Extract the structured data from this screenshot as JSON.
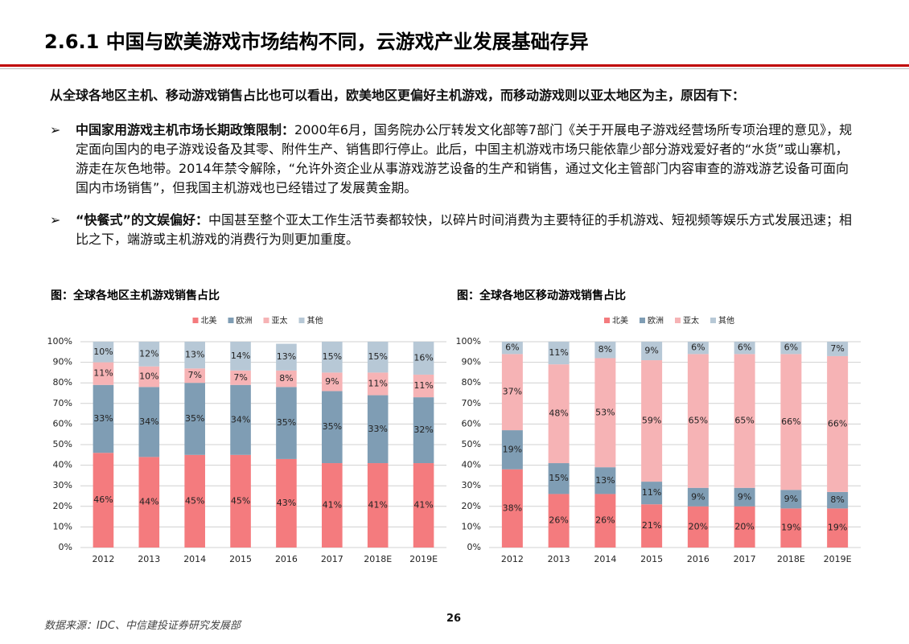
{
  "header": {
    "title": "2.6.1 中国与欧美游戏市场结构不同，云游戏产业发展基础存异"
  },
  "intro": "从全球各地区主机、移动游戏销售占比也可以看出，欧美地区更偏好主机游戏，而移动游戏则以亚太地区为主，原因有下：",
  "bullets": [
    {
      "lead": "中国家用游戏主机市场长期政策限制：",
      "text": "2000年6月，国务院办公厅转发文化部等7部门《关于开展电子游戏经营场所专项治理的意见》，规定面向国内的电子游戏设备及其零、附件生产、销售即行停止。此后，中国主机游戏市场只能依靠少部分游戏爱好者的“水货”或山寨机，游走在灰色地带。2014年禁令解除，“允许外资企业从事游戏游艺设备的生产和销售，通过文化主管部门内容审查的游戏游艺设备可面向国内市场销售”，但我国主机游戏也已经错过了发展黄金期。"
    },
    {
      "lead": "“快餐式”的文娱偏好：",
      "text": "中国甚至整个亚太工作生活节奏都较快，以碎片时间消费为主要特征的手机游戏、短视频等娱乐方式发展迅速；相比之下，端游或主机游戏的消费行为则更加重度。"
    }
  ],
  "chart_data": [
    {
      "type": "stacked_bar",
      "title": "图：全球各地区主机游戏销售占比",
      "categories": [
        "2012",
        "2013",
        "2014",
        "2015",
        "2016",
        "2017",
        "2018E",
        "2019E"
      ],
      "series": [
        {
          "name": "北美",
          "color": "#f47b7e",
          "values": [
            46,
            44,
            45,
            45,
            43,
            41,
            41,
            41
          ],
          "value_labels": [
            "46%",
            "44%",
            "45%",
            "45%",
            "43%",
            "41%",
            "41%",
            "41%"
          ]
        },
        {
          "name": "欧洲",
          "color": "#7f9db4",
          "values": [
            33,
            34,
            35,
            34,
            35,
            35,
            33,
            32
          ],
          "value_labels": [
            "33%",
            "34%",
            "35%",
            "34%",
            "35%",
            "35%",
            "33%",
            "32%"
          ]
        },
        {
          "name": "亚太",
          "color": "#f6b3b5",
          "values": [
            11,
            10,
            7,
            7,
            8,
            9,
            11,
            11
          ],
          "value_labels": [
            "11%",
            "10%",
            "7%",
            "7%",
            "8%",
            "9%",
            "11%",
            "11%"
          ]
        },
        {
          "name": "其他",
          "color": "#b7c8d6",
          "values": [
            10,
            12,
            13,
            14,
            13,
            15,
            15,
            16
          ],
          "value_labels": [
            "10%",
            "12%",
            "13%",
            "14%",
            "13%",
            "15%",
            "15%",
            "16%"
          ]
        }
      ],
      "ylim": [
        0,
        100
      ],
      "yticks": [
        {
          "value": 0,
          "label": "0%"
        },
        {
          "value": 10,
          "label": "10%"
        },
        {
          "value": 20,
          "label": "20%"
        },
        {
          "value": 30,
          "label": "30%"
        },
        {
          "value": 40,
          "label": "40%"
        },
        {
          "value": 50,
          "label": "50%"
        },
        {
          "value": 60,
          "label": "60%"
        },
        {
          "value": 70,
          "label": "70%"
        },
        {
          "value": 80,
          "label": "80%"
        },
        {
          "value": 90,
          "label": "90%"
        },
        {
          "value": 100,
          "label": "100%"
        }
      ],
      "grid": true,
      "legend": "top"
    },
    {
      "type": "stacked_bar",
      "title": "图：全球各地区移动游戏销售占比",
      "categories": [
        "2012",
        "2013",
        "2014",
        "2015",
        "2016",
        "2017",
        "2018E",
        "2019E"
      ],
      "series": [
        {
          "name": "北美",
          "color": "#f47b7e",
          "values": [
            38,
            26,
            26,
            21,
            20,
            20,
            19,
            19
          ],
          "value_labels": [
            "38%",
            "26%",
            "26%",
            "21%",
            "20%",
            "20%",
            "19%",
            "19%"
          ]
        },
        {
          "name": "欧洲",
          "color": "#7f9db4",
          "values": [
            19,
            15,
            13,
            11,
            9,
            9,
            9,
            8
          ],
          "value_labels": [
            "19%",
            "15%",
            "13%",
            "11%",
            "9%",
            "9%",
            "9%",
            "8%"
          ]
        },
        {
          "name": "亚太",
          "color": "#f6b3b5",
          "values": [
            37,
            48,
            53,
            59,
            65,
            65,
            66,
            66
          ],
          "value_labels": [
            "37%",
            "48%",
            "53%",
            "59%",
            "65%",
            "65%",
            "66%",
            "66%"
          ]
        },
        {
          "name": "其他",
          "color": "#b7c8d6",
          "values": [
            6,
            11,
            8,
            9,
            6,
            6,
            6,
            7
          ],
          "value_labels": [
            "6%",
            "11%",
            "8%",
            "9%",
            "6%",
            "6%",
            "6%",
            "7%"
          ]
        }
      ],
      "ylim": [
        0,
        100
      ],
      "yticks": [
        {
          "value": 0,
          "label": "0%"
        },
        {
          "value": 10,
          "label": "10%"
        },
        {
          "value": 20,
          "label": "20%"
        },
        {
          "value": 30,
          "label": "30%"
        },
        {
          "value": 40,
          "label": "40%"
        },
        {
          "value": 50,
          "label": "50%"
        },
        {
          "value": 60,
          "label": "60%"
        },
        {
          "value": 70,
          "label": "70%"
        },
        {
          "value": 80,
          "label": "80%"
        },
        {
          "value": 90,
          "label": "90%"
        },
        {
          "value": 100,
          "label": "100%"
        }
      ],
      "grid": true,
      "legend": "top"
    }
  ],
  "footer": {
    "source": "数据来源：IDC、中信建投证券研究发展部",
    "page": "26"
  }
}
